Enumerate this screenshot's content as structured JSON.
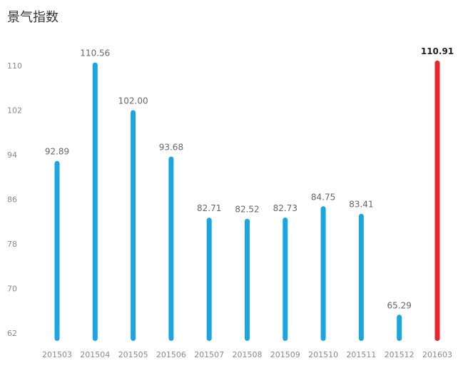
{
  "chart_data": {
    "type": "bar",
    "title": "景气指数",
    "xlabel": "",
    "ylabel": "",
    "categories": [
      "201503",
      "201504",
      "201505",
      "201506",
      "201507",
      "201508",
      "201509",
      "201510",
      "201511",
      "201512",
      "201603"
    ],
    "values": [
      92.89,
      110.56,
      102.0,
      93.68,
      82.71,
      82.52,
      82.73,
      84.75,
      83.41,
      65.29,
      110.91
    ],
    "value_labels": [
      "92.89",
      "110.56",
      "102.00",
      "93.68",
      "82.71",
      "82.52",
      "82.73",
      "84.75",
      "83.41",
      "65.29",
      "110.91"
    ],
    "ylim": [
      62,
      114
    ],
    "yticks": [
      62,
      70,
      78,
      86,
      94,
      102,
      110
    ],
    "grid": false,
    "bar_color": "#1aa6e0",
    "highlight_index": 10,
    "highlight_color": "#e8262b"
  }
}
